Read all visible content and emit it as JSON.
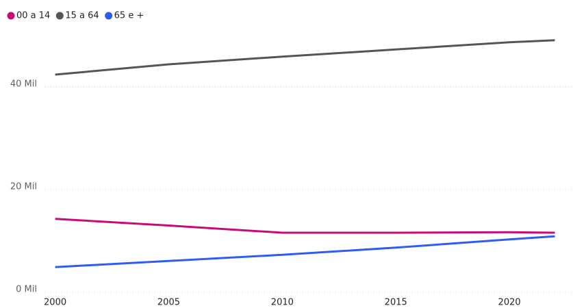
{
  "chart_data": {
    "type": "line",
    "x": [
      2000,
      2005,
      2010,
      2015,
      2020,
      2022
    ],
    "series": [
      {
        "name": "00 a 14",
        "color": "#c8097a",
        "values": [
          14.3,
          13.0,
          11.6,
          11.6,
          11.7,
          11.6
        ]
      },
      {
        "name": "15 a 64",
        "color": "#555555",
        "values": [
          42.4,
          44.4,
          45.9,
          47.3,
          48.7,
          49.1
        ]
      },
      {
        "name": "65 e +",
        "color": "#2e5cf5",
        "values": [
          4.9,
          6.1,
          7.3,
          8.7,
          10.3,
          10.9
        ]
      }
    ],
    "xlim": [
      1999.5,
      2022.8
    ],
    "xticks": [
      2000,
      2005,
      2010,
      2015,
      2020
    ],
    "ylim": [
      0,
      50
    ],
    "yticks": [
      {
        "value": 0,
        "label": "0 Mil"
      },
      {
        "value": 20,
        "label": "20 Mil"
      },
      {
        "value": 40,
        "label": "40 Mil"
      }
    ],
    "grid": true
  }
}
